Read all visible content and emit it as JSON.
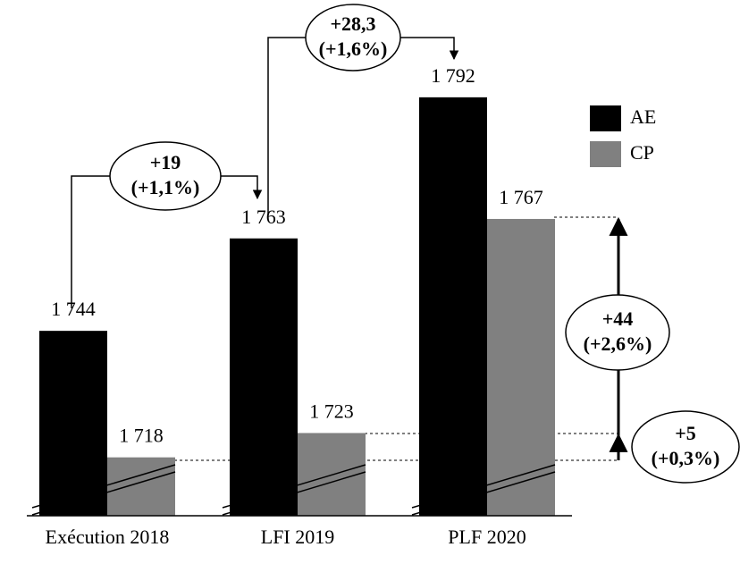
{
  "chart_data": {
    "type": "bar",
    "categories": [
      "Exécution 2018",
      "LFI 2019",
      "PLF 2020"
    ],
    "series": [
      {
        "name": "AE",
        "color": "#000000",
        "values": [
          1744,
          1763,
          1792
        ],
        "value_labels": [
          "1 744",
          "1 763",
          "1 792"
        ]
      },
      {
        "name": "CP",
        "color": "#808080",
        "values": [
          1718,
          1723,
          1767
        ],
        "value_labels": [
          "1 718",
          "1 723",
          "1 767"
        ]
      }
    ],
    "ylim": [
      1706,
      1812
    ],
    "annotations": [
      {
        "change": "+19",
        "pct": "(+1,1%)"
      },
      {
        "change": "+28,3",
        "pct": "(+1,6%)"
      },
      {
        "change": "+44",
        "pct": "(+2,6%)"
      },
      {
        "change": "+5",
        "pct": "(+0,3%)"
      }
    ]
  }
}
